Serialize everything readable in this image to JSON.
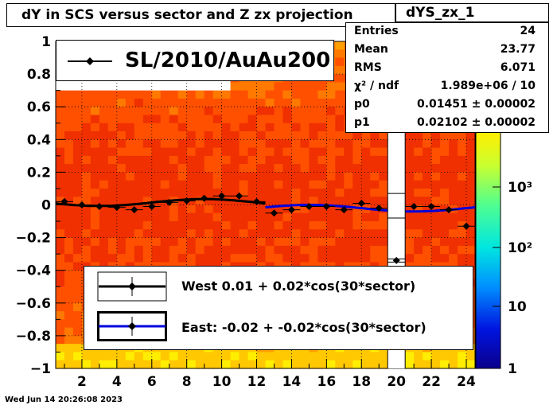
{
  "title": "dY in SCS versus sector and Z zx projection",
  "stats": {
    "name": "dYS_zx_1",
    "rows": [
      {
        "label": "Entries",
        "value": "24"
      },
      {
        "label": "Mean",
        "value": "23.77"
      },
      {
        "label": "RMS",
        "value": "6.071"
      },
      {
        "label": "χ² / ndf",
        "value": "1.989e+06 / 10"
      },
      {
        "label": "p0",
        "value": "0.01451 ± 0.00002"
      },
      {
        "label": "p1",
        "value": "0.02102 ± 0.00002"
      }
    ]
  },
  "run_label": "SL/2010/AuAu200",
  "legend": {
    "west": "West  0.01 +  0.02*cos(30*sector)",
    "east": "East: -0.02 + -0.02*cos(30*sector)"
  },
  "datestamp": "Wed Jun 14 20:26:08 2023",
  "colors": {
    "west_fit": "#000000",
    "east_fit": "#0000dd",
    "marker": "#000000"
  },
  "chart_data": {
    "type": "scatter",
    "xlim": [
      0.5,
      24.5
    ],
    "ylim": [
      -1,
      1
    ],
    "x_ticks": [
      2,
      4,
      6,
      8,
      10,
      12,
      14,
      16,
      18,
      20,
      22,
      24
    ],
    "y_ticks": [
      -1,
      -0.8,
      -0.6,
      -0.4,
      -0.2,
      0,
      0.2,
      0.4,
      0.6,
      0.8,
      1
    ],
    "y_tick_labels": [
      "−1",
      "−0.8",
      "−0.6",
      "−0.4",
      "−0.2",
      "0",
      "0.2",
      "0.4",
      "0.6",
      "0.8",
      "1"
    ],
    "grid": true,
    "colorbar": {
      "scale": "log",
      "labels": [
        "1",
        "10",
        "10²",
        "10³"
      ]
    },
    "series": [
      {
        "x": [
          1,
          2,
          3,
          4,
          5,
          6,
          7,
          8,
          9,
          10,
          11,
          12,
          13,
          14,
          15,
          16,
          17,
          18,
          19,
          20,
          21,
          22,
          23,
          24
        ],
        "values": [
          0.02,
          0.0,
          -0.01,
          -0.015,
          -0.03,
          -0.01,
          0.015,
          0.025,
          0.04,
          0.055,
          0.055,
          0.02,
          -0.05,
          -0.03,
          -0.01,
          -0.01,
          -0.03,
          0.01,
          -0.02,
          -0.34,
          -0.01,
          -0.01,
          -0.03,
          -0.13
        ]
      }
    ],
    "fits": [
      {
        "x_range": [
          0.5,
          12.5
        ],
        "p0": 0.01451,
        "p1": 0.02102,
        "phase_deg": -270
      },
      {
        "x_range": [
          12.5,
          24.5
        ],
        "p0": -0.02,
        "p1": -0.02,
        "phase_deg": -270
      }
    ]
  }
}
